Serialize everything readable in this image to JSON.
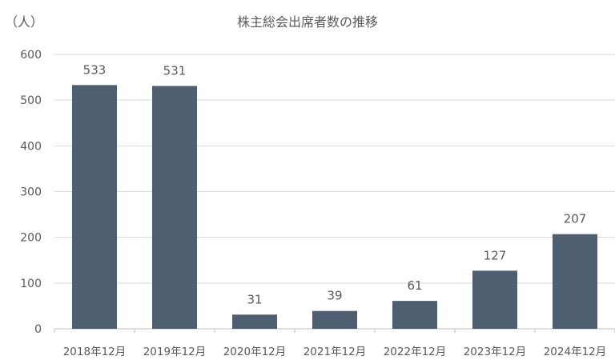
{
  "chart_data": {
    "type": "bar",
    "title": "株主総会出席者数の推移",
    "ylabel": "（人）",
    "xlabel": "",
    "categories": [
      "2018年12月",
      "2019年12月",
      "2020年12月",
      "2021年12月",
      "2022年12月",
      "2023年12月",
      "2024年12月"
    ],
    "values": [
      533,
      531,
      31,
      39,
      61,
      127,
      207
    ],
    "ylim": [
      0,
      600
    ],
    "yticks": [
      0,
      100,
      200,
      300,
      400,
      500,
      600
    ],
    "grid": true,
    "legend": "none",
    "bar_color": "#4f5f72"
  }
}
